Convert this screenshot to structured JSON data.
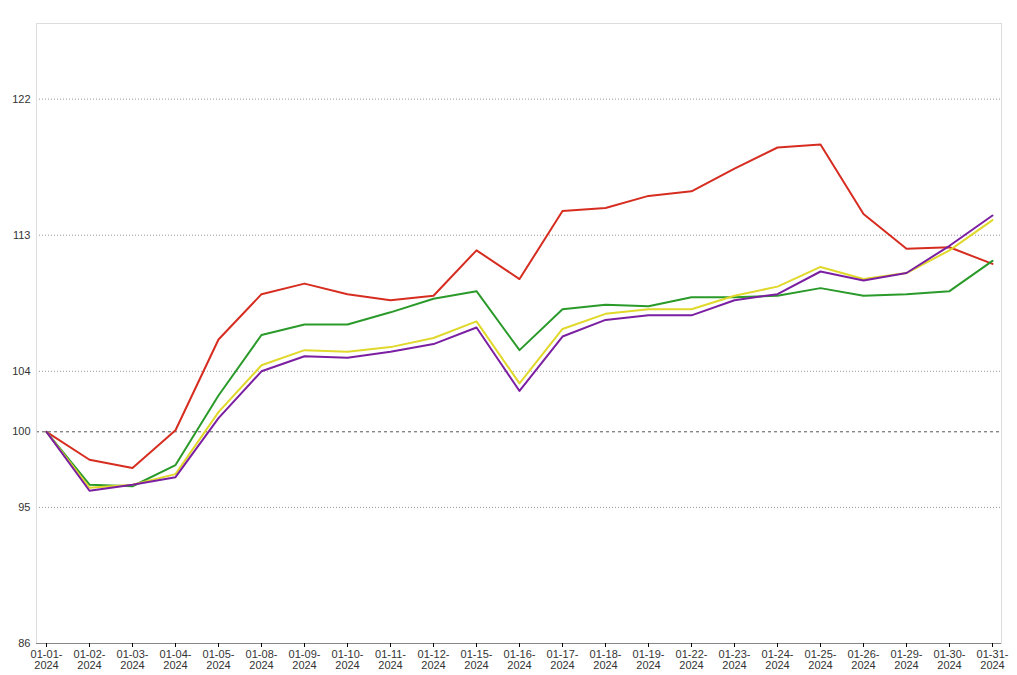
{
  "chart_data": {
    "type": "line",
    "x": [
      "01-01-2024",
      "01-02-2024",
      "01-03-2024",
      "01-04-2024",
      "01-05-2024",
      "01-08-2024",
      "01-09-2024",
      "01-10-2024",
      "01-11-2024",
      "01-12-2024",
      "01-15-2024",
      "01-16-2024",
      "01-17-2024",
      "01-18-2024",
      "01-19-2024",
      "01-22-2024",
      "01-23-2024",
      "01-24-2024",
      "01-25-2024",
      "01-26-2024",
      "01-29-2024",
      "01-30-2024",
      "01-31-2024"
    ],
    "series": [
      {
        "color": "#d62d20",
        "values": [
          100,
          98.15,
          97.6,
          100.1,
          106.1,
          109.1,
          109.8,
          109.1,
          108.7,
          109.0,
          112.0,
          110.1,
          114.6,
          114.8,
          115.6,
          115.9,
          117.4,
          118.8,
          119.0,
          114.4,
          112.1,
          112.2,
          111.1
        ]
      },
      {
        "color": "#2a9a2a",
        "values": [
          100,
          96.5,
          96.4,
          97.8,
          102.4,
          106.4,
          107.1,
          107.1,
          107.9,
          108.8,
          109.3,
          105.4,
          108.1,
          108.4,
          108.3,
          108.9,
          108.9,
          109.0,
          109.5,
          109.0,
          109.1,
          109.3,
          111.3
        ]
      },
      {
        "color": "#e0d82a",
        "values": [
          100,
          96.3,
          96.5,
          97.2,
          101.3,
          104.4,
          105.4,
          105.3,
          105.6,
          106.2,
          107.3,
          103.2,
          106.8,
          107.8,
          108.1,
          108.1,
          109.0,
          109.6,
          110.9,
          110.1,
          110.5,
          112.0,
          114.0
        ]
      },
      {
        "color": "#7b1fa2",
        "values": [
          100,
          96.1,
          96.5,
          97.0,
          100.9,
          104.0,
          105.0,
          104.9,
          105.3,
          105.8,
          106.9,
          102.7,
          106.3,
          107.4,
          107.7,
          107.7,
          108.7,
          109.1,
          110.6,
          110.0,
          110.5,
          112.3,
          114.3
        ]
      }
    ],
    "ylim": [
      86,
      127
    ],
    "yticks": [
      86,
      95,
      100,
      104,
      113,
      122
    ],
    "grid": true
  }
}
